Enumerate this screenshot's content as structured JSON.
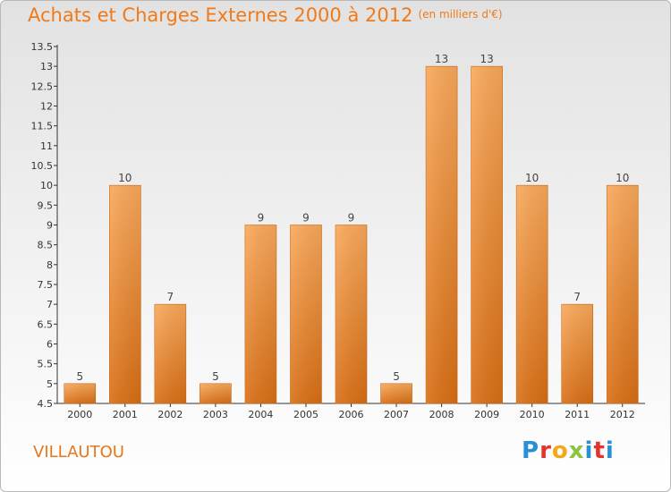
{
  "header": {
    "title": "Achats et Charges Externes 2000 à 2012",
    "subtitle": "(en milliers d'€)"
  },
  "commune": "VILLAUTOU",
  "logo": {
    "text": "Proxiti"
  },
  "colors": {
    "title": "#f07a1a",
    "bar_top": "#f9a85a",
    "bar_bottom": "#d86e14",
    "axis": "#333333"
  },
  "chart_data": {
    "type": "bar",
    "title": "Achats et Charges Externes 2000 à 2012",
    "subtitle": "(en milliers d'€)",
    "categories": [
      "2000",
      "2001",
      "2002",
      "2003",
      "2004",
      "2005",
      "2006",
      "2007",
      "2008",
      "2009",
      "2010",
      "2011",
      "2012"
    ],
    "values": [
      5,
      10,
      7,
      5,
      9,
      9,
      9,
      5,
      13,
      13,
      10,
      7,
      10
    ],
    "data_labels": [
      "5",
      "10",
      "7",
      "5",
      "9",
      "9",
      "9",
      "5",
      "13",
      "13",
      "10",
      "7",
      "10"
    ],
    "ylim": [
      4.5,
      13.5
    ],
    "yticks": [
      "4.5",
      "5",
      "5.5",
      "6",
      "6.5",
      "7",
      "7.5",
      "8",
      "8.5",
      "9",
      "9.5",
      "10",
      "10.5",
      "11",
      "11.5",
      "12",
      "12.5",
      "13",
      "13.5"
    ],
    "grid": false,
    "legend": "none"
  }
}
